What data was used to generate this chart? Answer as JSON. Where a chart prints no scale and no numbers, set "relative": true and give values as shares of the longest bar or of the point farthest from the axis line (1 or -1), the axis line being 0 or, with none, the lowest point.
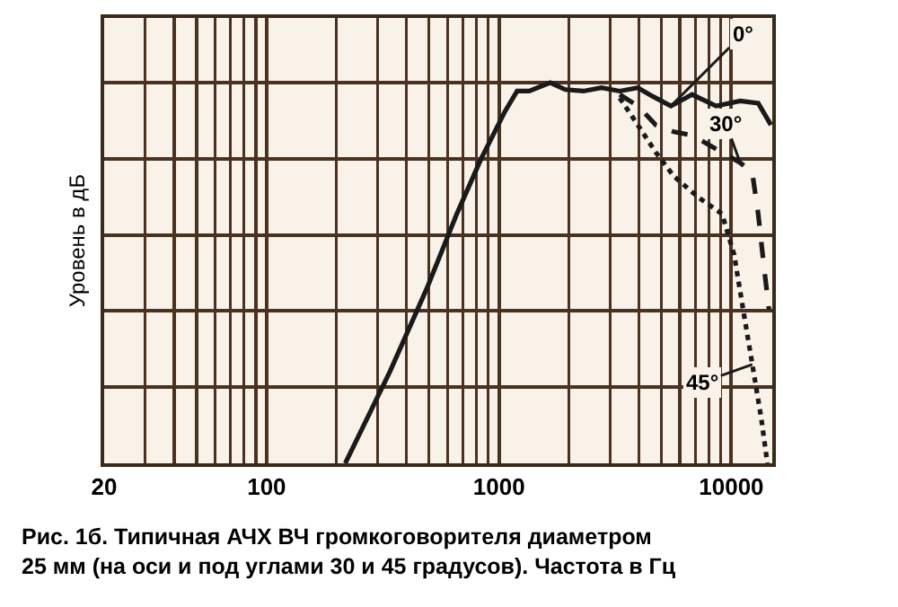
{
  "chart_data": {
    "type": "line",
    "relative": true,
    "ylabel": "Уровень в дБ",
    "log": "x",
    "xlim": [
      20,
      15000
    ],
    "xticks": [
      20,
      100,
      1000,
      10000
    ],
    "grid": true,
    "legend": false,
    "marker": "none",
    "series": [
      {
        "color": "#1a1a1a",
        "line_style": "solid",
        "x": [
          218,
          340,
          488,
          658,
          836,
          1062,
          1197,
          1348,
          1662,
          1930,
          2309,
          2763,
          3307,
          3958,
          4594,
          5496,
          6771,
          8603,
          10914,
          13050,
          14800
        ],
        "values": [
          0,
          0.242,
          0.458,
          0.655,
          0.799,
          0.925,
          0.978,
          0.978,
          1,
          0.982,
          0.978,
          0.987,
          0.978,
          0.987,
          0.964,
          0.939,
          0.969,
          0.939,
          0.952,
          0.946,
          0.889
        ]
      },
      {
        "color": "#1a1a1a",
        "line_style": "dashed",
        "x": [
          3307,
          3958,
          4733,
          5660,
          6771,
          8603,
          10914,
          12310,
          13050,
          13840,
          14520
        ],
        "values": [
          0.969,
          0.939,
          0.889,
          0.871,
          0.862,
          0.826,
          0.79,
          0.763,
          0.655,
          0.512,
          0.404
        ]
      },
      {
        "color": "#1a1a1a",
        "line_style": "dotted",
        "x": [
          3307,
          3958,
          4733,
          5660,
          7180,
          9120,
          10280,
          11240,
          12310,
          13460,
          14290
        ],
        "values": [
          0.96,
          0.889,
          0.817,
          0.754,
          0.7,
          0.655,
          0.548,
          0.404,
          0.26,
          0.117,
          0
        ]
      }
    ],
    "annotations": [
      {
        "text": "0°",
        "x": 5496,
        "y": 0.939
      },
      {
        "text": "30°",
        "x": 10914,
        "y": 0.79
      },
      {
        "text": "45°",
        "x": 12310,
        "y": 0.26
      },
      "Рис. 1б. Типичная АЧХ ВЧ громкоговорителя диаметром 25 мм (на оси и под углами 30 и 45 градусов). Частота в Гц"
    ]
  }
}
